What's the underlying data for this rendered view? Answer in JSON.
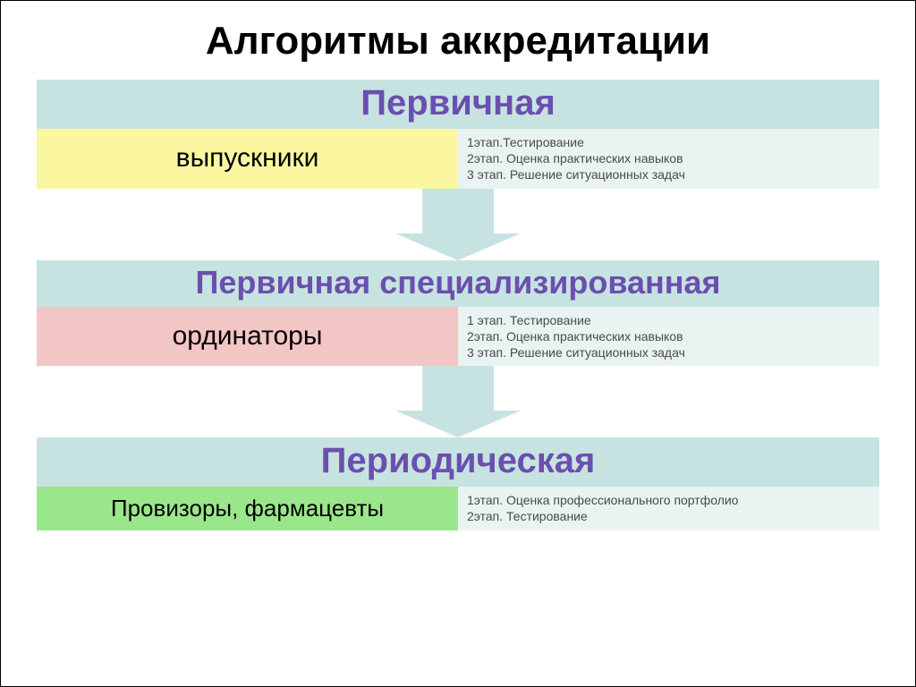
{
  "title": {
    "text": "Алгоритмы аккредитации",
    "fontsize": 44,
    "weight": "bold",
    "color": "#000000"
  },
  "colors": {
    "header_bg": "#c7e3e1",
    "header_text": "#6b4fb0",
    "arrow_fill": "#c7e3e1",
    "right_bg": "#e9f3f2",
    "right_text": "#4a4a4a"
  },
  "blocks": [
    {
      "header": "Первичная",
      "header_fontsize": 40,
      "left": {
        "text": "выпускники",
        "bg": "#faf7a0",
        "color": "#000000",
        "fontsize": 30
      },
      "stages": [
        "1этап.Тестирование",
        "2этап. Оценка практических навыков",
        "3 этап. Решение ситуационных задач"
      ],
      "stage_fontsize": 14
    },
    {
      "header": "Первичная специализированная",
      "header_fontsize": 36,
      "left": {
        "text": "ординаторы",
        "bg": "#f3c6c6",
        "color": "#000000",
        "fontsize": 30
      },
      "stages": [
        "1 этап. Тестирование",
        "2этап. Оценка практических навыков",
        "3 этап. Решение ситуационных задач"
      ],
      "stage_fontsize": 14
    },
    {
      "header": "Периодическая",
      "header_fontsize": 40,
      "left": {
        "text": "Провизоры, фармацевты",
        "bg": "#9ae68b",
        "color": "#000000",
        "fontsize": 26
      },
      "stages": [
        "1этап. Оценка профессионального портфолио",
        "2этап. Тестирование"
      ],
      "stage_fontsize": 14
    }
  ],
  "arrow": {
    "shaft_w": 80,
    "shaft_h": 50,
    "head_w": 140,
    "head_h": 30
  }
}
